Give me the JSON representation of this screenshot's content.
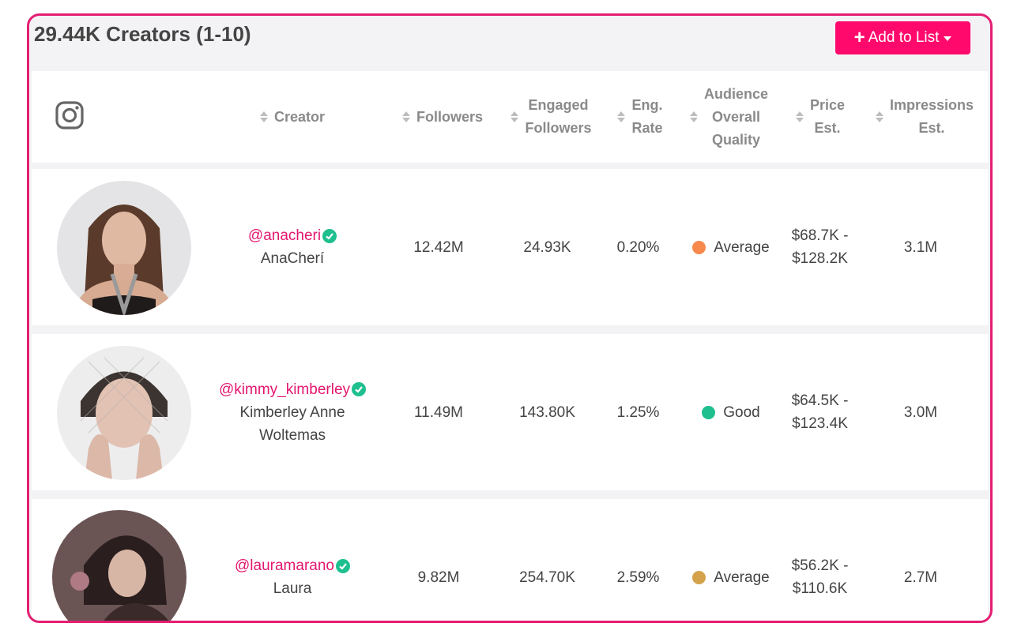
{
  "title": "29.44K Creators (1-10)",
  "add_button": {
    "label": "Add to List"
  },
  "columns": [
    "Creator",
    "Followers",
    "Engaged Followers",
    "Eng. Rate",
    "Audience Overall Quality",
    "Price Est.",
    "Impressions Est."
  ],
  "column_lines": {
    "creator": [
      "Creator"
    ],
    "followers": [
      "Followers"
    ],
    "engaged": [
      "Engaged",
      "Followers"
    ],
    "eng_rate": [
      "Eng.",
      "Rate"
    ],
    "quality": [
      "Audience",
      "Overall",
      "Quality"
    ],
    "price": [
      "Price",
      "Est."
    ],
    "impressions": [
      "Impressions",
      "Est."
    ]
  },
  "rows": [
    {
      "handle": "@anacheri",
      "name_lines": [
        "AnaCherí"
      ],
      "followers": "12.42M",
      "engaged": "24.93K",
      "eng_rate": "0.20%",
      "quality": "Average",
      "quality_color": "#f7894c",
      "price_lines": [
        "$68.7K -",
        "$128.2K"
      ],
      "impressions": "3.1M"
    },
    {
      "handle": "@kimmy_kimberley",
      "name_lines": [
        "Kimberley Anne",
        "Woltemas"
      ],
      "followers": "11.49M",
      "engaged": "143.80K",
      "eng_rate": "1.25%",
      "quality": "Good",
      "quality_color": "#1fbf8f",
      "price_lines": [
        "$64.5K -",
        "$123.4K"
      ],
      "impressions": "3.0M"
    },
    {
      "handle": "@lauramarano",
      "name_lines": [
        "Laura"
      ],
      "followers": "9.82M",
      "engaged": "254.70K",
      "eng_rate": "2.59%",
      "quality": "Average",
      "quality_color": "#d4a24a",
      "price_lines": [
        "$56.2K -",
        "$110.6K"
      ],
      "impressions": "2.7M"
    }
  ],
  "colors": {
    "accent": "#e41e73",
    "button": "#ff0a6c",
    "verified": "#1fbf8f"
  },
  "icons": {
    "platform": "instagram-icon",
    "verified": "verified-check-icon",
    "sort": "sort-icon"
  }
}
